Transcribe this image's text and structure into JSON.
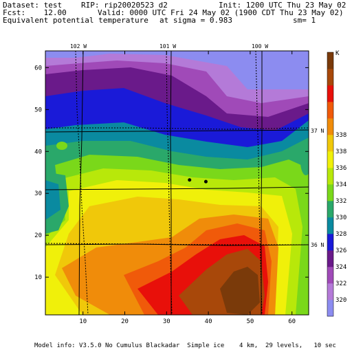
{
  "header": {
    "dataset": "Dataset: test",
    "rip": "RIP: rip20020523 d2",
    "init": "Init: 1200 UTC Thu 23 May 02",
    "fcst": "Fcst:    12.00",
    "valid": "Valid: 0000 UTC Fri 24 May 02 (1900 CDT Thu 23 May 02)",
    "field": "Equivalent potential temperature",
    "sigma": "at sigma = 0.983",
    "sm": "sm= 1"
  },
  "footer": {
    "model_info": "Model info: V3.5.0 No Cumulus Blackadar  Simple ice    4 km,  29 levels,   10 sec"
  },
  "map": {
    "x_ticks": [
      "10",
      "20",
      "30",
      "40",
      "50",
      "60"
    ],
    "y_ticks": [
      "10",
      "20",
      "30",
      "40",
      "50",
      "60"
    ],
    "lon_labels": [
      "102 W",
      "101 W",
      "100 W"
    ],
    "lat_labels": [
      "37 N",
      "36 N"
    ]
  },
  "colorbar": {
    "unit": "K",
    "levels": [
      "320",
      "322",
      "324",
      "326",
      "328",
      "330",
      "332",
      "334",
      "336",
      "338",
      "338"
    ],
    "colors": [
      "#8c8cf0",
      "#b47ad8",
      "#a04ab8",
      "#6a1a8a",
      "#1a1ad8",
      "#0a8aa0",
      "#2aa86a",
      "#7ad81a",
      "#b8e80a",
      "#f0f00a",
      "#f0c80a",
      "#f08c0a",
      "#f05a0a",
      "#e8100a",
      "#a8480a",
      "#7a3a0a"
    ]
  },
  "markers": [
    {
      "name": "station-dot-1",
      "x": 35.5,
      "y": 33.2
    },
    {
      "name": "station-dot-2",
      "x": 39.4,
      "y": 32.8
    }
  ]
}
